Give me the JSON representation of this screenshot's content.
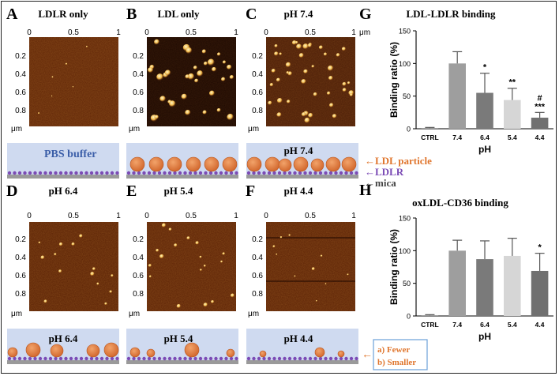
{
  "panels": {
    "A": {
      "letter": "A",
      "title": "LDLR only"
    },
    "B": {
      "letter": "B",
      "title": "LDL only"
    },
    "C": {
      "letter": "C",
      "title": "pH 7.4"
    },
    "D": {
      "letter": "D",
      "title": "pH 6.4"
    },
    "E": {
      "letter": "E",
      "title": "pH 5.4"
    },
    "F": {
      "letter": "F",
      "title": "pH 4.4"
    },
    "G": {
      "letter": "G",
      "title": "LDL-LDLR binding"
    },
    "H": {
      "letter": "H",
      "title": "oxLDL-CD36 binding"
    }
  },
  "afm_axis": {
    "tick_0": "0",
    "tick_05": "0.5",
    "tick_1": "1",
    "y_ticks": [
      "0.2",
      "0.4",
      "0.6",
      "0.8"
    ],
    "unit": "μm"
  },
  "schematic": {
    "pbs": "PBS buffer",
    "ph74": "pH 7.4",
    "ph64": "pH 6.4",
    "ph54": "pH 5.4",
    "ph44": "pH 4.4",
    "legend_ldl": "←LDL particle",
    "legend_ldlr": "←LDLR",
    "legend_mica": "←mica",
    "fewer": "a) Fewer",
    "smaller": "b) Smaller",
    "arrow": "←"
  },
  "colors": {
    "afm_bg": "#5a1f04",
    "particle": "#e07a3a",
    "buffer": "#cfdaf0",
    "receptor": "#7b4bb5",
    "mica": "#9a9a9a",
    "ldl_text": "#e0762e",
    "ldlr_text": "#7b4bb5"
  },
  "chart_data": [
    {
      "type": "bar",
      "title": "LDL-LDLR binding",
      "xlabel": "pH",
      "ylabel": "Binding ratio  (%)",
      "ylim": [
        0,
        150
      ],
      "yticks": [
        "0",
        "50",
        "100",
        "150"
      ],
      "categories": [
        "CTRL",
        "7.4",
        "6.4",
        "5.4",
        "4.4"
      ],
      "values": [
        1,
        100,
        55,
        44,
        17
      ],
      "errors": [
        1,
        18,
        30,
        18,
        8
      ],
      "colors": [
        "#888888",
        "#9e9e9e",
        "#7a7a7a",
        "#d6d6d6",
        "#707070"
      ],
      "annotations": [
        "",
        "",
        "*",
        "**",
        "#\n***"
      ]
    },
    {
      "type": "bar",
      "title": "oxLDL-CD36 binding",
      "xlabel": "pH",
      "ylabel": "Binding ratio  (%)",
      "ylim": [
        0,
        150
      ],
      "yticks": [
        "0",
        "50",
        "100",
        "150"
      ],
      "categories": [
        "CTRL",
        "7.4",
        "6.4",
        "5.4",
        "4.4"
      ],
      "values": [
        1,
        100,
        87,
        92,
        69
      ],
      "errors": [
        1,
        16,
        28,
        27,
        27
      ],
      "colors": [
        "#888888",
        "#9e9e9e",
        "#7a7a7a",
        "#d6d6d6",
        "#707070"
      ],
      "annotations": [
        "",
        "",
        "",
        "",
        "*"
      ]
    }
  ]
}
